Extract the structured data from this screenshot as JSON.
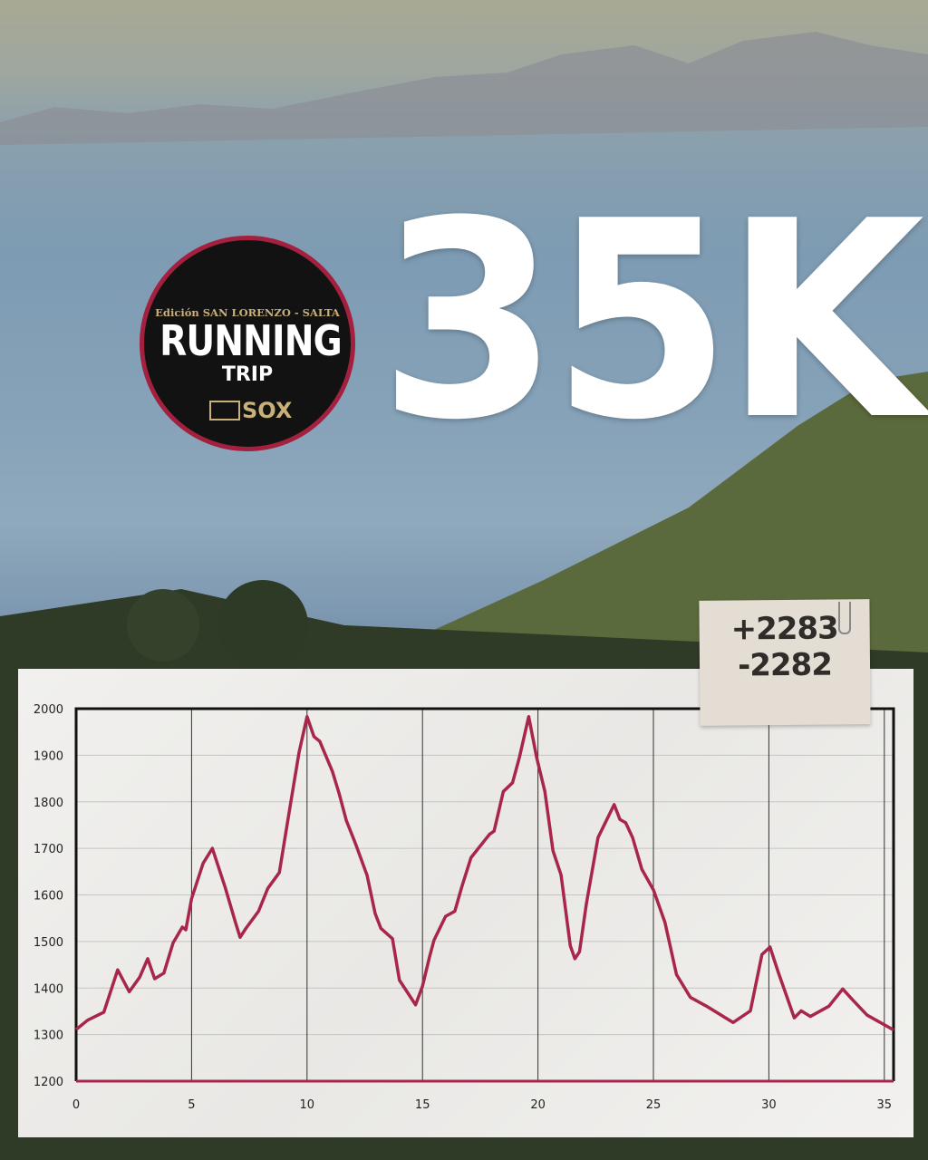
{
  "poster": {
    "distance_title": "35K",
    "logo": {
      "edition": "Edición SAN LORENZO - SALTA",
      "name_line1": "RUNNING",
      "name_line2": "TRIP",
      "sponsor": "SOX"
    },
    "elevation_note": {
      "gain": "+2283",
      "loss": "-2282"
    }
  },
  "colors": {
    "line": "#a8264a",
    "logo_ring": "#a3203f",
    "logo_gold": "#c9b07a"
  },
  "chart_data": {
    "type": "line",
    "title": "",
    "xlabel": "",
    "ylabel": "",
    "xlim": [
      0,
      35.4
    ],
    "ylim": [
      1200,
      2000
    ],
    "xticks": [
      0,
      5,
      10,
      15,
      20,
      25,
      30,
      35
    ],
    "yticks": [
      1200,
      1300,
      1400,
      1500,
      1600,
      1700,
      1800,
      1900,
      2000
    ],
    "grid": true,
    "series": [
      {
        "x": [
          0,
          0.5,
          1.2,
          1.8,
          2.3,
          2.75,
          3.1,
          3.4,
          3.8,
          4.2,
          4.6,
          4.75,
          5.0,
          5.5,
          5.9,
          6.45,
          6.9,
          7.1,
          7.35,
          7.9,
          8.3,
          8.8,
          9.2,
          9.65,
          10.0,
          10.3,
          10.55,
          11.1,
          11.4,
          11.7,
          12.1,
          12.6,
          12.95,
          13.2,
          13.7,
          14.0,
          14.7,
          15.0,
          15.3,
          15.5,
          16.0,
          16.4,
          16.7,
          17.1,
          17.9,
          18.1,
          18.5,
          18.9,
          19.2,
          19.6,
          19.94,
          20.3,
          20.65,
          21.0,
          21.4,
          21.6,
          21.8,
          22.1,
          22.6,
          23.3,
          23.55,
          23.8,
          24.1,
          24.5,
          25.0,
          25.5,
          26.0,
          26.6,
          27.3,
          28.45,
          29.2,
          29.7,
          30.05,
          30.4,
          31.1,
          31.4,
          31.8,
          32.6,
          33.2,
          33.6,
          34.25,
          35.4
        ],
        "values": [
          1311,
          1331,
          1348,
          1439,
          1392,
          1423,
          1463,
          1420,
          1432,
          1497,
          1531,
          1525,
          1592,
          1668,
          1700,
          1617,
          1541,
          1509,
          1528,
          1565,
          1614,
          1648,
          1770,
          1905,
          1983,
          1940,
          1930,
          1865,
          1816,
          1760,
          1710,
          1642,
          1560,
          1528,
          1506,
          1417,
          1364,
          1404,
          1466,
          1503,
          1554,
          1565,
          1617,
          1680,
          1730,
          1737,
          1822,
          1841,
          1896,
          1983,
          1896,
          1822,
          1695,
          1643,
          1491,
          1463,
          1478,
          1582,
          1723,
          1794,
          1762,
          1755,
          1723,
          1655,
          1611,
          1541,
          1429,
          1380,
          1361,
          1326,
          1351,
          1472,
          1488,
          1435,
          1336,
          1351,
          1339,
          1361,
          1398,
          1376,
          1342,
          1310
        ]
      }
    ]
  }
}
